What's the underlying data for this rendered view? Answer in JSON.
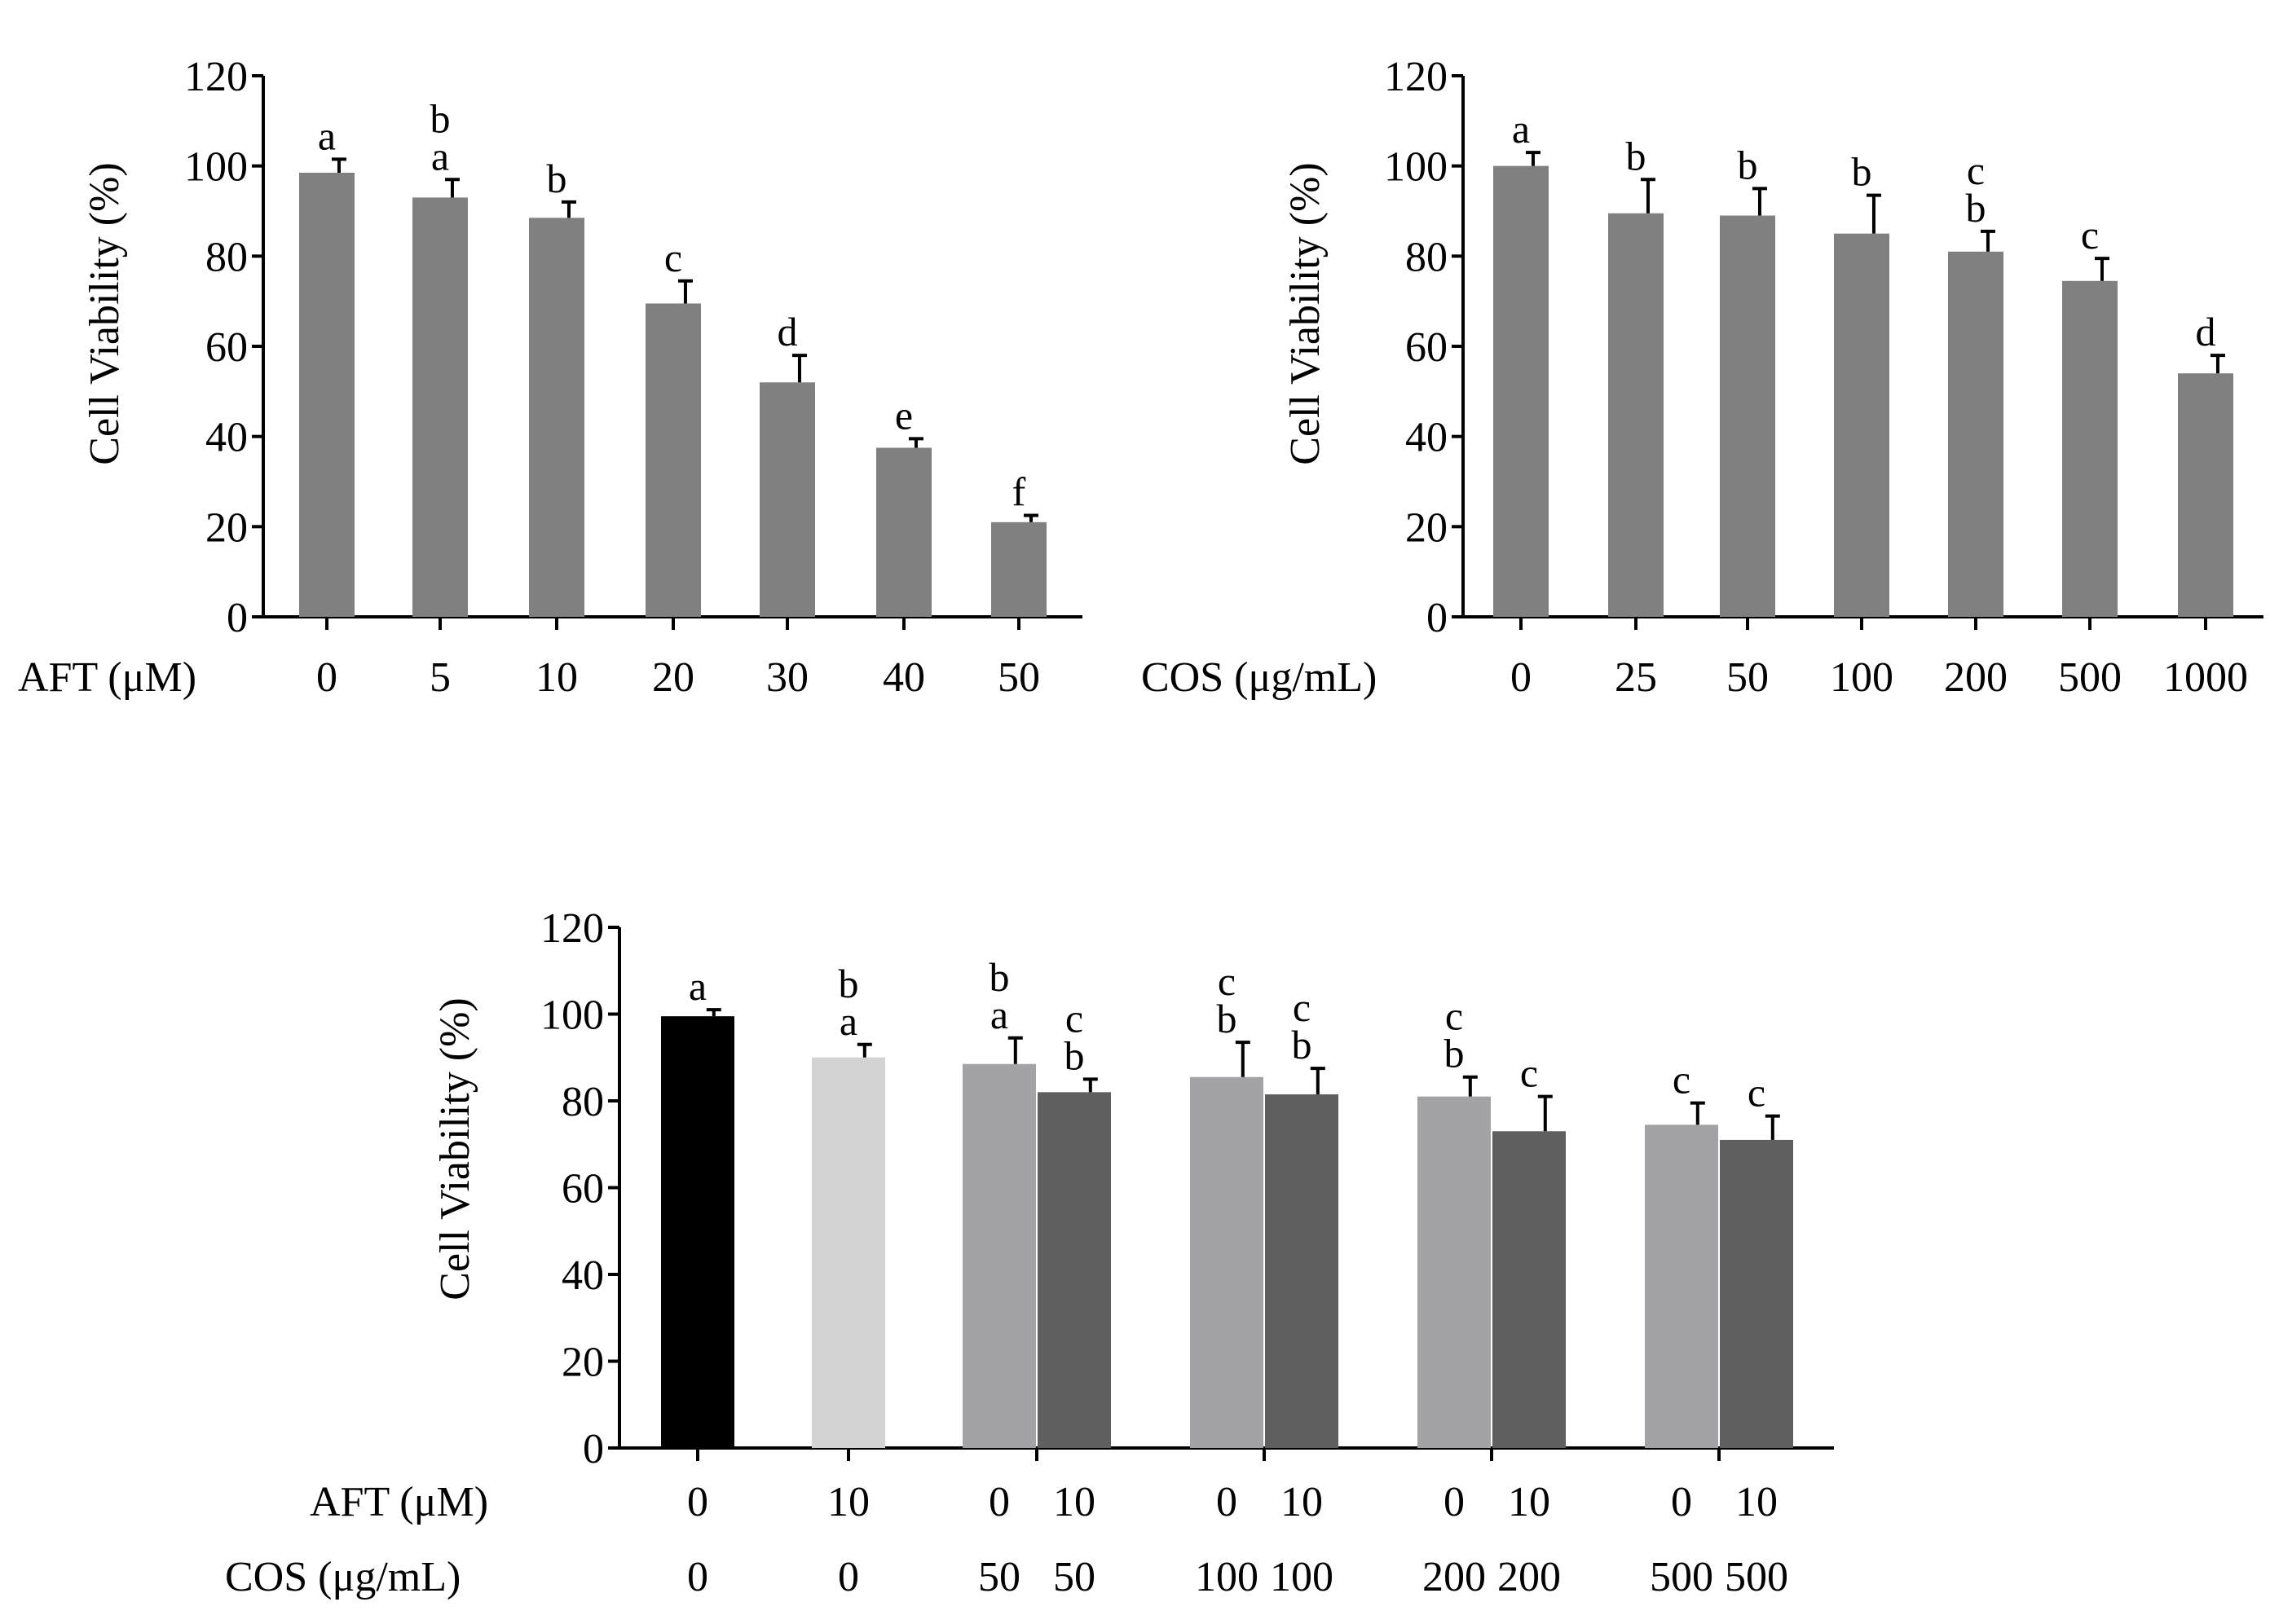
{
  "chart_data": [
    {
      "type": "bar",
      "title": "",
      "xlabel": "AFT (μM)",
      "ylabel": "Cell Viability (%)",
      "ylim": [
        0,
        120
      ],
      "yticks": [
        "0",
        "20",
        "40",
        "60",
        "80",
        "100",
        "120"
      ],
      "bar_color": "#808080",
      "categories": [
        "0",
        "5",
        "10",
        "20",
        "30",
        "40",
        "50"
      ],
      "values": [
        98.5,
        93,
        88.5,
        69.5,
        52,
        37.5,
        21
      ],
      "errors": [
        3,
        4,
        3.5,
        5,
        6,
        2,
        1.5
      ],
      "letters": [
        [
          "a"
        ],
        [
          "b",
          "a"
        ],
        [
          "b"
        ],
        [
          "c"
        ],
        [
          "d"
        ],
        [
          "e"
        ],
        [
          "f"
        ]
      ]
    },
    {
      "type": "bar",
      "title": "",
      "xlabel": "COS (μg/mL)",
      "ylabel": "Cell Viability (%)",
      "ylim": [
        0,
        120
      ],
      "yticks": [
        "0",
        "20",
        "40",
        "60",
        "80",
        "100",
        "120"
      ],
      "bar_color": "#808080",
      "categories": [
        "0",
        "25",
        "50",
        "100",
        "200",
        "500",
        "1000"
      ],
      "values": [
        100,
        89.5,
        89,
        85,
        81,
        74.5,
        54
      ],
      "errors": [
        3,
        7.5,
        6,
        8.5,
        4.5,
        5,
        4
      ],
      "letters": [
        [
          "a"
        ],
        [
          "b"
        ],
        [
          "b"
        ],
        [
          "b"
        ],
        [
          "c",
          "b"
        ],
        [
          "c"
        ],
        [
          "d"
        ]
      ]
    },
    {
      "type": "bar",
      "title": "",
      "ylabel": "Cell Viability (%)",
      "ylim": [
        0,
        120
      ],
      "yticks": [
        "0",
        "20",
        "40",
        "60",
        "80",
        "100",
        "120"
      ],
      "row_labels": [
        "AFT (μM)",
        "COS (μg/mL)"
      ],
      "groups": [
        {
          "bars": [
            {
              "aft": "0",
              "cos": "0",
              "value": 99.5,
              "error": 1.5,
              "color": "#000000",
              "letters": [
                "a"
              ]
            }
          ]
        },
        {
          "bars": [
            {
              "aft": "10",
              "cos": "0",
              "value": 90,
              "error": 3,
              "color": "#d3d3d3",
              "letters": [
                "b",
                "a"
              ]
            }
          ]
        },
        {
          "bars": [
            {
              "aft": "0",
              "cos": "50",
              "value": 88.5,
              "error": 6,
              "color": "#a3a3a6",
              "letters": [
                "b",
                "a"
              ]
            },
            {
              "aft": "10",
              "cos": "50",
              "value": 82,
              "error": 3,
              "color": "#5f5f5f",
              "letters": [
                "c",
                "b"
              ]
            }
          ]
        },
        {
          "bars": [
            {
              "aft": "0",
              "cos": "100",
              "value": 85.5,
              "error": 8,
              "color": "#a3a3a6",
              "letters": [
                "c",
                "b"
              ]
            },
            {
              "aft": "10",
              "cos": "100",
              "value": 81.5,
              "error": 6,
              "color": "#5f5f5f",
              "letters": [
                "c",
                "b"
              ]
            }
          ]
        },
        {
          "bars": [
            {
              "aft": "0",
              "cos": "200",
              "value": 81,
              "error": 4.5,
              "color": "#a3a3a6",
              "letters": [
                "c",
                "b"
              ]
            },
            {
              "aft": "10",
              "cos": "200",
              "value": 73,
              "error": 8,
              "color": "#5f5f5f",
              "letters": [
                "c"
              ]
            }
          ]
        },
        {
          "bars": [
            {
              "aft": "0",
              "cos": "500",
              "value": 74.5,
              "error": 5,
              "color": "#a3a3a6",
              "letters": [
                "c"
              ]
            },
            {
              "aft": "10",
              "cos": "500",
              "value": 71,
              "error": 5.5,
              "color": "#5f5f5f",
              "letters": [
                "c"
              ]
            }
          ]
        }
      ]
    }
  ]
}
